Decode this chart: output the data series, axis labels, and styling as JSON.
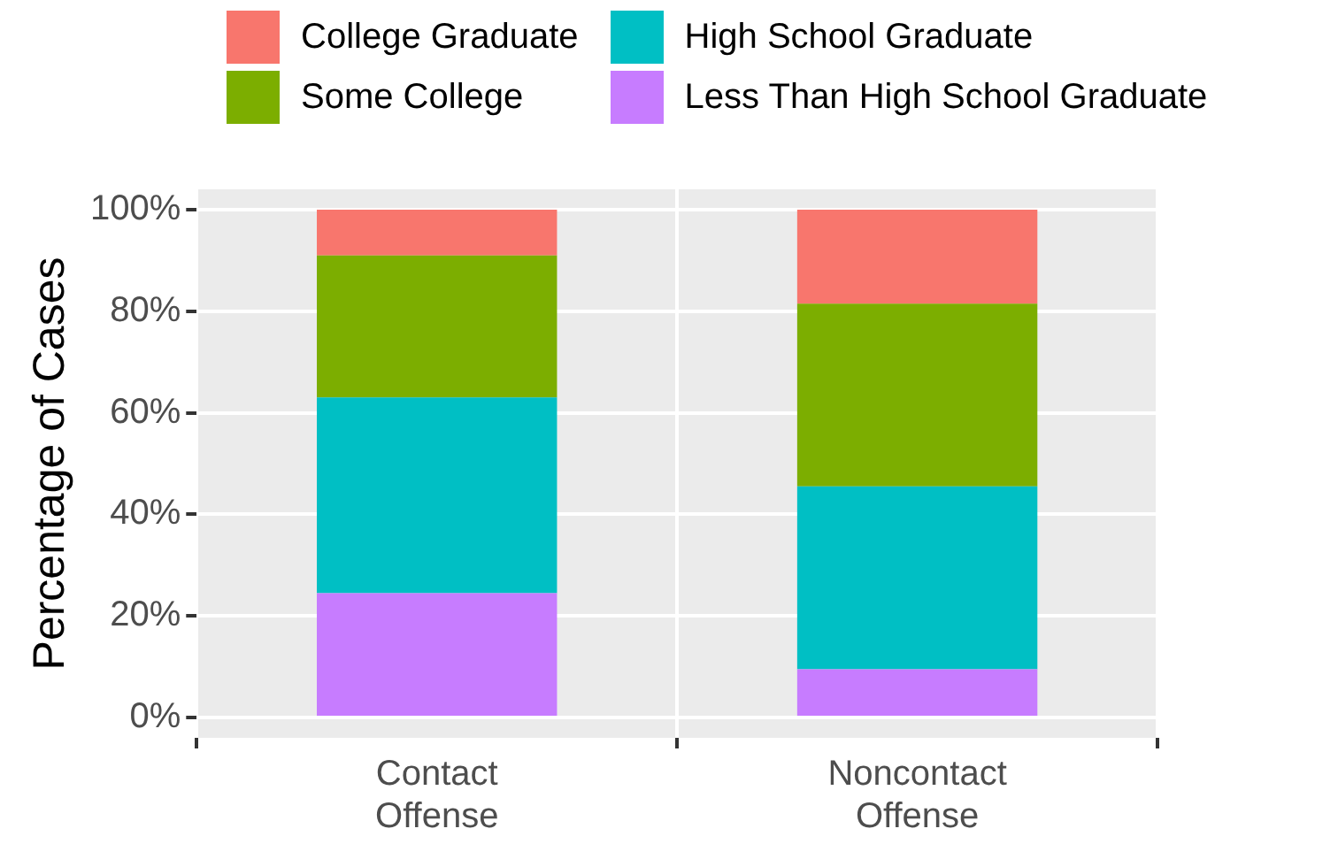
{
  "chart_data": {
    "type": "bar",
    "stacked": true,
    "ylabel": "Percentage of Cases",
    "categories": [
      "Contact Offense",
      "Noncontact Offense"
    ],
    "series": [
      {
        "name": "Less Than High School Graduate",
        "color": "#c77cff",
        "values": [
          24.5,
          9.5
        ]
      },
      {
        "name": "High School Graduate",
        "color": "#00bfc4",
        "values": [
          38.5,
          36
        ]
      },
      {
        "name": "Some College",
        "color": "#7cae00",
        "values": [
          28,
          36
        ]
      },
      {
        "name": "College Graduate",
        "color": "#f8766d",
        "values": [
          9,
          18.5
        ]
      }
    ],
    "ylim": [
      -4,
      104
    ],
    "yticks": [
      {
        "value": 0,
        "label": "0%"
      },
      {
        "value": 20,
        "label": "20%"
      },
      {
        "value": 40,
        "label": "40%"
      },
      {
        "value": 60,
        "label": "60%"
      },
      {
        "value": 80,
        "label": "80%"
      },
      {
        "value": 100,
        "label": "100%"
      }
    ],
    "grid": true,
    "legend": "top"
  }
}
